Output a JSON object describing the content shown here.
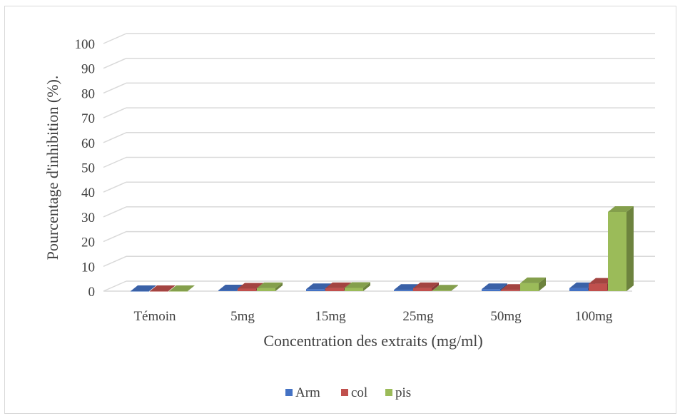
{
  "chart_data": {
    "type": "bar",
    "style": "3d-clustered-column",
    "xlabel": "Concentration des extraits (mg/ml)",
    "ylabel": "Pourcentage d'inhibition (%).",
    "ylim": [
      0,
      100
    ],
    "yticks": [
      "0",
      "10",
      "20",
      "30",
      "40",
      "50",
      "60",
      "70",
      "80",
      "90",
      "100"
    ],
    "categories": [
      "Témoin",
      "5mg",
      "15mg",
      "25mg",
      "50mg",
      "100mg"
    ],
    "series": [
      {
        "name": "Arm",
        "color": "#4472c4",
        "values": [
          0,
          0.3,
          0.8,
          0.5,
          0.8,
          1.2
        ]
      },
      {
        "name": "col",
        "color": "#c0504d",
        "values": [
          0,
          1.0,
          1.2,
          1.2,
          0.5,
          3.0
        ]
      },
      {
        "name": "pis",
        "color": "#9bbb59",
        "values": [
          0,
          1.2,
          1.3,
          0.2,
          3.2,
          32.0
        ]
      }
    ],
    "grid": true,
    "legend": "bottom"
  }
}
